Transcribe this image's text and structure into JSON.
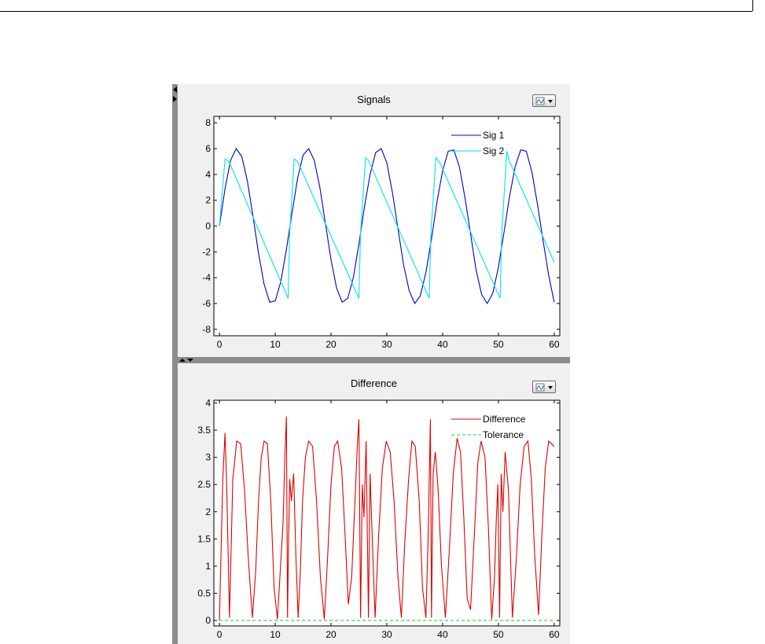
{
  "chart_data": [
    {
      "type": "line",
      "title": "Signals",
      "xlabel": "",
      "ylabel": "",
      "xlim": [
        -1,
        61
      ],
      "ylim": [
        -8.5,
        8.5
      ],
      "xticks": [
        0,
        10,
        20,
        30,
        40,
        50,
        60
      ],
      "yticks": [
        -8,
        -6,
        -4,
        -2,
        0,
        2,
        4,
        6,
        8
      ],
      "grid": false,
      "legend_position": "top-right",
      "series": [
        {
          "name": "Sig 1",
          "color": "#0000cc",
          "description": "sine wave, amplitude 6, period ~12.5",
          "x": [
            0,
            1,
            2,
            3,
            4,
            5,
            6,
            7,
            8,
            9,
            10,
            11,
            12,
            13,
            14,
            15,
            16,
            17,
            18,
            19,
            20,
            21,
            22,
            23,
            24,
            25,
            26,
            27,
            28,
            29,
            30,
            31,
            32,
            33,
            34,
            35,
            36,
            37,
            38,
            39,
            40,
            41,
            42,
            43,
            44,
            45,
            46,
            47,
            48,
            49,
            50,
            51,
            52,
            53,
            54,
            55,
            56,
            57,
            58,
            59,
            60
          ],
          "y": [
            0,
            2.9,
            5.1,
            6.0,
            5.4,
            3.5,
            0.8,
            -2.1,
            -4.5,
            -5.9,
            -5.8,
            -4.3,
            -1.8,
            1.0,
            3.7,
            5.5,
            6.0,
            5.1,
            3.0,
            0.2,
            -2.6,
            -4.8,
            -5.9,
            -5.6,
            -4.0,
            -1.4,
            1.5,
            4.0,
            5.7,
            6.0,
            4.9,
            2.6,
            -0.2,
            -3.0,
            -5.0,
            -6.0,
            -5.4,
            -3.6,
            -1.0,
            1.9,
            4.3,
            5.8,
            5.9,
            4.6,
            2.2,
            -0.6,
            -3.4,
            -5.3,
            -6.0,
            -5.2,
            -3.2,
            -0.5,
            2.3,
            4.6,
            5.9,
            5.8,
            4.2,
            1.7,
            -1.1,
            -3.8,
            -5.9
          ]
        },
        {
          "name": "Sig 2",
          "color": "#00e5e5",
          "description": "sawtooth-like wave, jumps up to ~5.2 then decreases to ~-5.6",
          "x": [
            0,
            1.0,
            1.7,
            12.3,
            12.6,
            13.4,
            14.0,
            25.0,
            25.3,
            26.2,
            26.8,
            37.6,
            37.9,
            38.8,
            39.4,
            50.3,
            50.6,
            51.5,
            52.0,
            60
          ],
          "y": [
            0,
            5.2,
            5.0,
            -5.6,
            -0.5,
            5.2,
            5.0,
            -5.6,
            -0.5,
            5.3,
            5.0,
            -5.6,
            -0.5,
            5.3,
            5.0,
            -5.6,
            -0.5,
            5.8,
            5.0,
            -2.8
          ]
        }
      ]
    },
    {
      "type": "line",
      "title": "Difference",
      "xlabel": "",
      "ylabel": "",
      "xlim": [
        -1,
        61
      ],
      "ylim": [
        -0.1,
        4.05
      ],
      "xticks": [
        0,
        10,
        20,
        30,
        40,
        50,
        60
      ],
      "yticks": [
        0,
        0.5,
        1,
        1.5,
        2,
        2.5,
        3,
        3.5,
        4
      ],
      "ytick_labels": [
        "0",
        "0.5",
        "1",
        "1.5",
        "2",
        "2.5",
        "3",
        "3.5",
        "4"
      ],
      "grid": false,
      "legend_position": "top-right",
      "series": [
        {
          "name": "Difference",
          "color": "#e00000",
          "description": "oscillating absolute difference between 0 and ~3.3 with occasional spikes up to ~3.8",
          "x": [
            0,
            0.3,
            0.6,
            1.0,
            1.3,
            1.8,
            2.4,
            3.1,
            3.8,
            4.5,
            5.2,
            5.9,
            6.5,
            7.0,
            7.5,
            8.0,
            8.6,
            9.2,
            9.8,
            10.4,
            11.0,
            11.4,
            11.7,
            12.0,
            12.2,
            12.4,
            12.6,
            12.9,
            13.3,
            13.7,
            14.1,
            14.5,
            14.9,
            15.4,
            16.0,
            16.7,
            17.4,
            18.1,
            18.8,
            19.4,
            20.0,
            20.6,
            21.2,
            21.9,
            22.5,
            23.1,
            23.7,
            24.3,
            24.7,
            25.0,
            25.3,
            25.6,
            25.9,
            26.3,
            26.7,
            27.0,
            27.4,
            27.9,
            28.5,
            29.2,
            29.9,
            30.6,
            31.3,
            32.0,
            32.6,
            33.2,
            33.9,
            34.5,
            35.1,
            35.8,
            36.4,
            37.0,
            37.4,
            37.8,
            38.0,
            38.3,
            38.7,
            39.2,
            39.8,
            40.5,
            41.2,
            41.9,
            42.6,
            43.2,
            43.8,
            44.4,
            45.0,
            45.7,
            46.3,
            46.9,
            47.6,
            48.2,
            48.8,
            49.3,
            49.6,
            49.9,
            50.2,
            50.5,
            50.8,
            51.2,
            51.8,
            52.5,
            53.2,
            53.9,
            54.6,
            55.3,
            55.9,
            56.5,
            57.2,
            57.8,
            58.4,
            59.0,
            59.5,
            60
          ],
          "y": [
            0,
            1.3,
            2.6,
            3.45,
            2.5,
            0.05,
            2.6,
            3.3,
            3.25,
            2.4,
            1.1,
            0.05,
            0.9,
            2.2,
            3.0,
            3.3,
            3.25,
            2.2,
            0.6,
            0.02,
            1.1,
            1.8,
            2.9,
            3.75,
            0.05,
            1.5,
            2.6,
            2.2,
            2.7,
            1.2,
            0.05,
            0.9,
            2.2,
            3.0,
            3.3,
            3.2,
            2.2,
            0.8,
            0.02,
            1.2,
            2.5,
            3.2,
            3.3,
            2.8,
            1.6,
            0.3,
            0.8,
            2.2,
            3.2,
            3.7,
            0.05,
            2.5,
            1.9,
            3.3,
            0.05,
            2.7,
            1.5,
            0.05,
            1.5,
            2.8,
            3.3,
            3.1,
            2.2,
            0.8,
            0.05,
            1.4,
            2.6,
            3.3,
            3.2,
            2.2,
            0.6,
            0.05,
            1.5,
            3.7,
            0.05,
            2.7,
            3.1,
            2.4,
            1.0,
            0.05,
            1.3,
            2.7,
            3.35,
            3.1,
            1.9,
            0.4,
            0.2,
            1.6,
            2.9,
            3.3,
            3.0,
            1.7,
            0.02,
            0.8,
            1.8,
            2.5,
            0.05,
            2.7,
            2.0,
            3.1,
            2.4,
            0.05,
            1.1,
            2.5,
            3.2,
            3.3,
            2.6,
            1.2,
            0.1,
            1.6,
            2.8,
            3.3,
            3.25,
            3.2
          ]
        },
        {
          "name": "Tolerance",
          "color": "#33cc33",
          "dashed": true,
          "x": [
            0,
            60
          ],
          "y": [
            0,
            0
          ]
        }
      ]
    }
  ]
}
